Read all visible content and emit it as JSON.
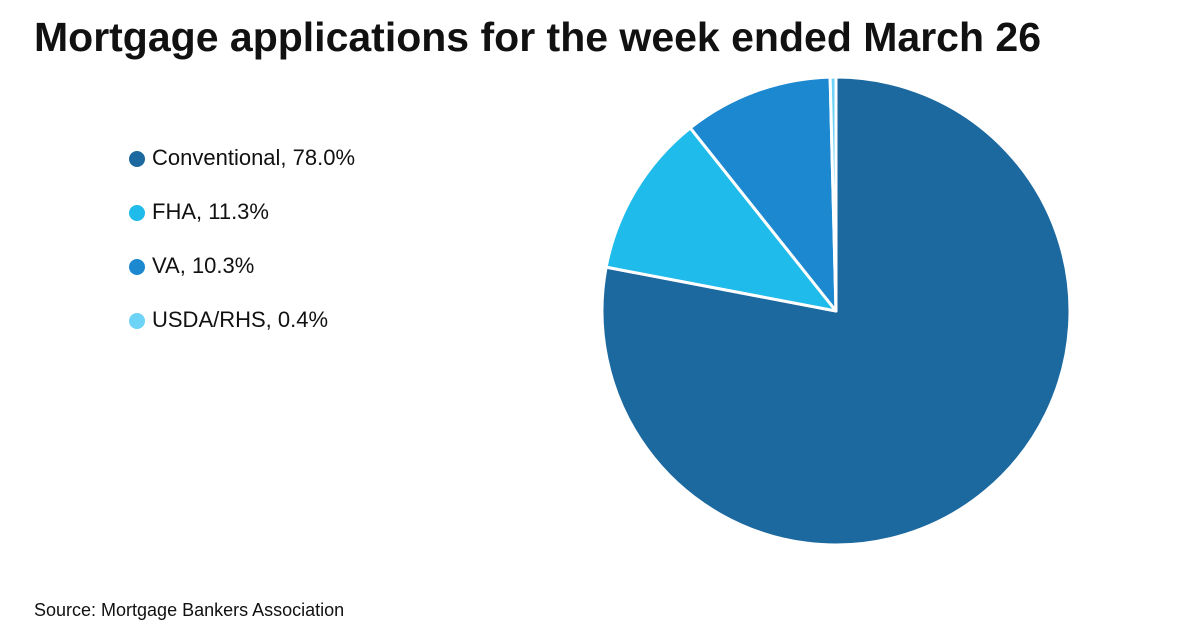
{
  "chart_data": {
    "type": "pie",
    "title": "Mortgage applications for the week ended March 26",
    "categories": [
      "Conventional, 78.0%",
      "FHA, 11.3%",
      "VA, 10.3%",
      "USDA/RHS, 0.4%"
    ],
    "values": [
      78.0,
      11.3,
      10.3,
      0.4
    ],
    "colors": [
      "#1c699f",
      "#1fbbea",
      "#1c88d0",
      "#6dd3f7"
    ],
    "source": "Source: Mortgage Bankers Association"
  }
}
